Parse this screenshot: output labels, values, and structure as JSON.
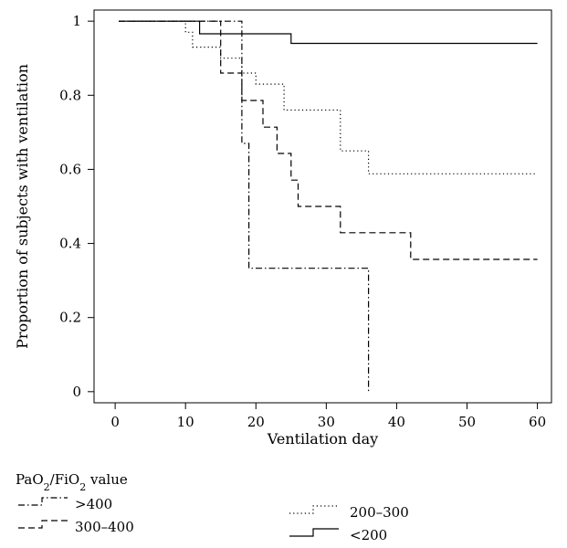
{
  "chart_data": {
    "type": "line",
    "title": "",
    "xlabel": "Ventilation day",
    "ylabel": "Proportion of subjects with ventilation",
    "xlim": [
      -3,
      62
    ],
    "ylim": [
      -0.03,
      1.03
    ],
    "xticks": [
      0,
      10,
      20,
      30,
      40,
      50,
      60
    ],
    "yticks": [
      0,
      0.2,
      0.4,
      0.6,
      0.8,
      1
    ],
    "ytick_labels": [
      "0",
      "0.2",
      "0.4",
      "0.6",
      "0.8",
      "1"
    ],
    "grid": false,
    "legend": {
      "title_main": "PaO",
      "title_sub1": "2",
      "title_mid": "/FiO",
      "title_sub2": "2",
      "title_end": " value",
      "placement": "bottom"
    },
    "series": [
      {
        "name": ">400",
        "style": "dashdot",
        "points": [
          [
            0.5,
            1.0
          ],
          [
            18,
            1.0
          ],
          [
            18,
            0.67
          ],
          [
            19,
            0.67
          ],
          [
            19,
            0.333
          ],
          [
            36,
            0.333
          ],
          [
            36,
            0.0
          ]
        ]
      },
      {
        "name": "300–400",
        "style": "dashed",
        "points": [
          [
            0.5,
            1.0
          ],
          [
            15,
            1.0
          ],
          [
            15,
            0.86
          ],
          [
            18,
            0.86
          ],
          [
            18,
            0.786
          ],
          [
            21,
            0.786
          ],
          [
            21,
            0.714
          ],
          [
            23,
            0.714
          ],
          [
            23,
            0.643
          ],
          [
            25,
            0.643
          ],
          [
            25,
            0.571
          ],
          [
            26,
            0.571
          ],
          [
            26,
            0.5
          ],
          [
            32,
            0.5
          ],
          [
            32,
            0.429
          ],
          [
            42,
            0.429
          ],
          [
            42,
            0.357
          ],
          [
            60,
            0.357
          ]
        ]
      },
      {
        "name": "200–300",
        "style": "dotted",
        "points": [
          [
            0.5,
            1.0
          ],
          [
            10,
            1.0
          ],
          [
            10,
            0.97
          ],
          [
            11,
            0.97
          ],
          [
            11,
            0.93
          ],
          [
            15,
            0.93
          ],
          [
            15,
            0.9
          ],
          [
            18,
            0.9
          ],
          [
            18,
            0.86
          ],
          [
            20,
            0.86
          ],
          [
            20,
            0.83
          ],
          [
            24,
            0.83
          ],
          [
            24,
            0.76
          ],
          [
            32,
            0.76
          ],
          [
            32,
            0.65
          ],
          [
            36,
            0.65
          ],
          [
            36,
            0.588
          ],
          [
            60,
            0.588
          ]
        ]
      },
      {
        "name": "<200",
        "style": "solid",
        "points": [
          [
            0.5,
            1.0
          ],
          [
            12,
            1.0
          ],
          [
            12,
            0.966
          ],
          [
            25,
            0.966
          ],
          [
            25,
            0.94
          ],
          [
            60,
            0.94
          ]
        ]
      }
    ]
  }
}
